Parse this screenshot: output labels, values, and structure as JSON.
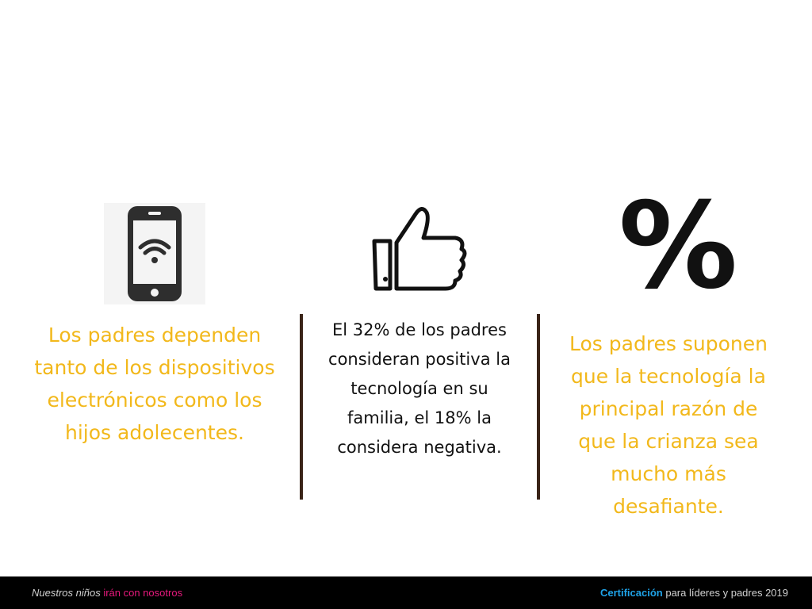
{
  "columns": {
    "left": {
      "icon": "smartphone-wifi-icon",
      "text": "Los padres dependen tanto de los dispositivos electrónicos como los hijos adolecentes."
    },
    "middle": {
      "icon": "thumbs-up-icon",
      "text": "El 32% de los padres consideran positiva la tecnología en su familia, el 18% la considera negativa."
    },
    "right": {
      "icon": "percent-icon",
      "symbol": "%",
      "text": "Los padres suponen que la tecnología la principal razón de que la crianza sea mucho más desafiante."
    }
  },
  "colors": {
    "accent_yellow": "#F2B81B",
    "divider": "#3A2418",
    "footer_bg": "#000000",
    "footer_pink": "#E8197D",
    "footer_blue": "#1FA3E8"
  },
  "footer": {
    "left_part1": "Nuestros niños",
    "left_part2": "irán con nosotros",
    "right_part1": "Certificación",
    "right_part2": "para líderes y padres  2019"
  }
}
